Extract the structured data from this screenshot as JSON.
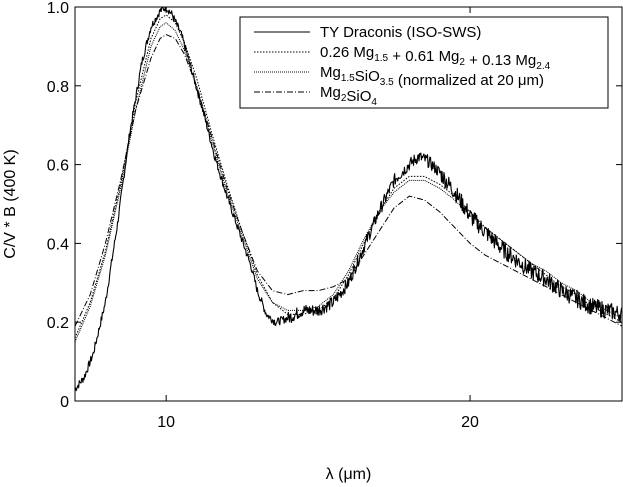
{
  "chart_data": {
    "type": "line",
    "title": "",
    "xlabel": "λ  (μm)",
    "ylabel": "C/V * B (400 K)",
    "xlim": [
      7,
      25
    ],
    "ylim": [
      0,
      1.0
    ],
    "x_ticks": [
      10,
      20
    ],
    "x_tick_labels": [
      "10",
      "20"
    ],
    "y_ticks": [
      0,
      0.2,
      0.4,
      0.6,
      0.8,
      1.0
    ],
    "y_tick_labels": [
      "0",
      "0.2",
      "0.4",
      "0.6",
      "0.8",
      "1.0"
    ],
    "grid": false,
    "legend": {
      "position": "top-right",
      "entries": [
        {
          "id": "ty",
          "parts": [
            {
              "text": "TY Draconis (ISO-SWS)",
              "sub": false
            }
          ]
        },
        {
          "id": "mix",
          "parts": [
            {
              "text": "0.26 Mg",
              "sub": false
            },
            {
              "text": "1.5",
              "sub": true
            },
            {
              "text": " + 0.61 Mg",
              "sub": false
            },
            {
              "text": "2",
              "sub": true
            },
            {
              "text": " + 0.13 Mg",
              "sub": false
            },
            {
              "text": "2.4",
              "sub": true
            }
          ]
        },
        {
          "id": "m15",
          "parts": [
            {
              "text": "Mg",
              "sub": false
            },
            {
              "text": "1.5",
              "sub": true
            },
            {
              "text": "SiO",
              "sub": false
            },
            {
              "text": "3.5",
              "sub": true
            },
            {
              "text": "  (normalized at 20 μm)",
              "sub": false
            }
          ]
        },
        {
          "id": "m2",
          "parts": [
            {
              "text": "Mg",
              "sub": false
            },
            {
              "text": "2",
              "sub": true
            },
            {
              "text": "SiO",
              "sub": false
            },
            {
              "text": "4",
              "sub": true
            }
          ]
        }
      ]
    },
    "series": [
      {
        "id": "ty",
        "style": "solid-noisy",
        "color": "#000000",
        "x": [
          7.0,
          7.3,
          7.6,
          8.0,
          8.4,
          8.8,
          9.2,
          9.5,
          9.8,
          10.0,
          10.2,
          10.5,
          10.8,
          11.2,
          11.6,
          12.0,
          12.4,
          12.8,
          13.0,
          13.3,
          13.6,
          14.0,
          14.5,
          15.0,
          15.5,
          16.0,
          16.5,
          17.0,
          17.5,
          18.0,
          18.3,
          18.6,
          19.0,
          19.5,
          20.0,
          20.5,
          21.0,
          21.5,
          22.0,
          22.5,
          23.0,
          23.5,
          24.0,
          24.5,
          25.0
        ],
        "y": [
          0.03,
          0.06,
          0.12,
          0.25,
          0.45,
          0.68,
          0.86,
          0.95,
          0.99,
          1.0,
          0.98,
          0.93,
          0.85,
          0.74,
          0.62,
          0.52,
          0.43,
          0.34,
          0.28,
          0.22,
          0.2,
          0.21,
          0.23,
          0.23,
          0.25,
          0.3,
          0.39,
          0.48,
          0.56,
          0.6,
          0.62,
          0.61,
          0.58,
          0.53,
          0.47,
          0.43,
          0.39,
          0.36,
          0.33,
          0.31,
          0.28,
          0.26,
          0.24,
          0.23,
          0.22
        ]
      },
      {
        "id": "mix",
        "style": "dotted",
        "color": "#000000",
        "x": [
          7.0,
          7.5,
          8.0,
          8.5,
          9.0,
          9.5,
          9.8,
          10.0,
          10.3,
          10.6,
          11.0,
          11.5,
          12.0,
          12.5,
          13.0,
          13.5,
          14.0,
          14.5,
          15.0,
          15.5,
          16.0,
          16.5,
          17.0,
          17.5,
          18.0,
          18.5,
          19.0,
          19.5,
          20.0,
          20.5,
          21.0,
          21.5,
          22.0,
          22.5,
          23.0,
          23.5,
          24.0,
          24.5,
          25.0
        ],
        "y": [
          0.16,
          0.25,
          0.38,
          0.55,
          0.76,
          0.92,
          0.97,
          0.98,
          0.96,
          0.91,
          0.82,
          0.68,
          0.55,
          0.43,
          0.32,
          0.25,
          0.22,
          0.22,
          0.23,
          0.26,
          0.32,
          0.4,
          0.48,
          0.54,
          0.57,
          0.57,
          0.55,
          0.52,
          0.48,
          0.44,
          0.41,
          0.38,
          0.35,
          0.32,
          0.29,
          0.27,
          0.24,
          0.22,
          0.2
        ]
      },
      {
        "id": "m15",
        "style": "dense-dot",
        "color": "#000000",
        "x": [
          7.0,
          7.5,
          8.0,
          8.5,
          9.0,
          9.5,
          9.8,
          10.0,
          10.3,
          10.6,
          11.0,
          11.5,
          12.0,
          12.5,
          13.0,
          13.5,
          14.0,
          14.5,
          15.0,
          15.5,
          16.0,
          16.5,
          17.0,
          17.5,
          18.0,
          18.5,
          19.0,
          19.5,
          20.0,
          20.5,
          21.0,
          21.5,
          22.0,
          22.5,
          23.0,
          23.5,
          24.0,
          24.5,
          25.0
        ],
        "y": [
          0.15,
          0.24,
          0.37,
          0.54,
          0.74,
          0.9,
          0.95,
          0.96,
          0.94,
          0.89,
          0.8,
          0.66,
          0.53,
          0.42,
          0.31,
          0.25,
          0.23,
          0.23,
          0.24,
          0.27,
          0.33,
          0.41,
          0.48,
          0.53,
          0.56,
          0.56,
          0.54,
          0.51,
          0.47,
          0.44,
          0.41,
          0.38,
          0.35,
          0.33,
          0.3,
          0.28,
          0.25,
          0.23,
          0.21
        ]
      },
      {
        "id": "m2",
        "style": "dash-dot",
        "color": "#000000",
        "x": [
          7.0,
          7.5,
          8.0,
          8.5,
          9.0,
          9.5,
          9.8,
          10.0,
          10.3,
          10.6,
          11.0,
          11.5,
          12.0,
          12.5,
          13.0,
          13.5,
          14.0,
          14.5,
          15.0,
          15.5,
          16.0,
          16.5,
          17.0,
          17.5,
          18.0,
          18.5,
          19.0,
          19.5,
          20.0,
          20.5,
          21.0,
          21.5,
          22.0,
          22.5,
          23.0,
          23.5,
          24.0,
          24.5,
          25.0
        ],
        "y": [
          0.19,
          0.27,
          0.4,
          0.56,
          0.74,
          0.87,
          0.92,
          0.93,
          0.92,
          0.88,
          0.8,
          0.67,
          0.54,
          0.43,
          0.33,
          0.28,
          0.27,
          0.28,
          0.28,
          0.29,
          0.31,
          0.37,
          0.43,
          0.49,
          0.52,
          0.51,
          0.48,
          0.44,
          0.4,
          0.37,
          0.35,
          0.33,
          0.31,
          0.29,
          0.27,
          0.25,
          0.23,
          0.21,
          0.19
        ]
      }
    ]
  }
}
